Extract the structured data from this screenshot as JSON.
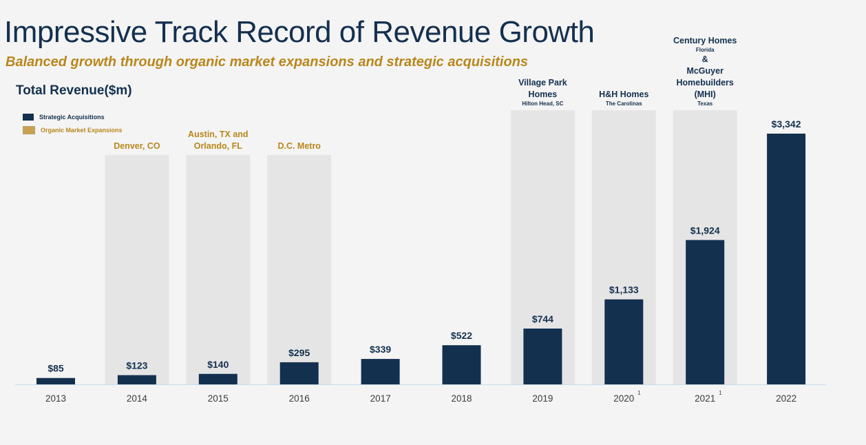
{
  "title": "Impressive Track Record of Revenue Growth",
  "subtitle": "Balanced growth through organic market expansions and strategic acquisitions",
  "colors": {
    "acquisition": "#13304f",
    "organic": "#b8861b",
    "organic_swatch": "#c9a152",
    "shade": "#e5e5e5",
    "axis": "#c9dcec"
  },
  "chart_data": {
    "type": "bar",
    "title": "Total Revenue($m)",
    "xlabel": "",
    "ylabel": "",
    "ylim": [
      0,
      3342
    ],
    "grid": false,
    "legend_position": "top-left",
    "legend": [
      {
        "name": "Strategic Acquisitions",
        "type": "acquisition"
      },
      {
        "name": "Organic Market Expansions",
        "type": "organic"
      }
    ],
    "categories": [
      "2013",
      "2014",
      "2015",
      "2016",
      "2017",
      "2018",
      "2019",
      "2020",
      "2021",
      "2022"
    ],
    "footnotes": {
      "2020": "1",
      "2021": "1"
    },
    "values": [
      85,
      123,
      140,
      295,
      339,
      522,
      744,
      1133,
      1924,
      3342
    ],
    "data_labels": [
      "$85",
      "$123",
      "$140",
      "$295",
      "$339",
      "$522",
      "$744",
      "$1,133",
      "$1,924",
      "$3,342"
    ],
    "annotations": [
      {
        "category": "2014",
        "type": "organic",
        "lines": [
          {
            "text": "Denver, CO",
            "style": "main"
          }
        ]
      },
      {
        "category": "2015",
        "type": "organic",
        "lines": [
          {
            "text": "Austin, TX and",
            "style": "main"
          },
          {
            "text": "Orlando, FL",
            "style": "main"
          }
        ]
      },
      {
        "category": "2016",
        "type": "organic",
        "lines": [
          {
            "text": "D.C. Metro",
            "style": "main"
          }
        ]
      },
      {
        "category": "2019",
        "type": "acquisition",
        "lines": [
          {
            "text": "Village Park",
            "style": "main"
          },
          {
            "text": "Homes",
            "style": "main"
          },
          {
            "text": "Hilton Head, SC",
            "style": "sub"
          }
        ]
      },
      {
        "category": "2020",
        "type": "acquisition",
        "lines": [
          {
            "text": "H&H Homes",
            "style": "main"
          },
          {
            "text": "The Carolinas",
            "style": "sub"
          }
        ]
      },
      {
        "category": "2021",
        "type": "acquisition",
        "lines": [
          {
            "text": "Century Homes",
            "style": "main"
          },
          {
            "text": "Florida",
            "style": "sub"
          },
          {
            "text": "&",
            "style": "main"
          },
          {
            "text": "McGuyer",
            "style": "main"
          },
          {
            "text": "Homebuilders",
            "style": "main"
          },
          {
            "text": "(MHI)",
            "style": "main"
          },
          {
            "text": "Texas",
            "style": "sub"
          }
        ]
      }
    ]
  }
}
